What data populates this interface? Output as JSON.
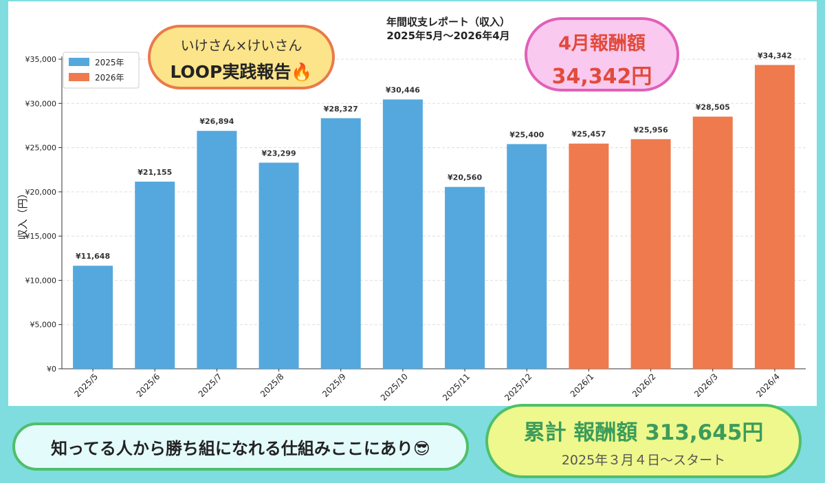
{
  "chart_data": {
    "type": "bar",
    "title": "年間収支レポート（収入）",
    "subtitle": "2025年5月〜2026年4月",
    "ylabel": "収入（円）",
    "xlabel": "",
    "ylim": [
      0,
      35000
    ],
    "yticks": [
      0,
      5000,
      10000,
      15000,
      20000,
      25000,
      30000,
      35000
    ],
    "ytick_labels": [
      "¥0",
      "¥5,000",
      "¥10,000",
      "¥15,000",
      "¥20,000",
      "¥25,000",
      "¥30,000",
      "¥35,000"
    ],
    "grid": true,
    "legend_position": "top-left",
    "categories": [
      "2025/5",
      "2025/6",
      "2025/7",
      "2025/8",
      "2025/9",
      "2025/10",
      "2025/11",
      "2025/12",
      "2026/1",
      "2026/2",
      "2026/3",
      "2026/4"
    ],
    "series": [
      {
        "name": "2025年",
        "color": "#55a8dd",
        "values": [
          11648,
          21155,
          26894,
          23299,
          28327,
          30446,
          20560,
          25400,
          null,
          null,
          null,
          null
        ]
      },
      {
        "name": "2026年",
        "color": "#ee7a4e",
        "values": [
          null,
          null,
          null,
          null,
          null,
          null,
          null,
          null,
          25457,
          25956,
          28505,
          34342
        ]
      }
    ],
    "value_labels": [
      "¥11,648",
      "¥21,155",
      "¥26,894",
      "¥23,299",
      "¥28,327",
      "¥30,446",
      "¥20,560",
      "¥25,400",
      "¥25,457",
      "¥25,956",
      "¥28,505",
      "¥34,342"
    ]
  },
  "badges": {
    "loop": {
      "line1": "いけさん×けいさん",
      "line2": "LOOP実践報告🔥"
    },
    "month": {
      "line1": "4月報酬額",
      "line2": "34,342円"
    },
    "tagline": "知ってる人から勝ち組になれる仕組みここにあり😎",
    "total": {
      "line1": "累計 報酬額 313,645円",
      "line2": "2025年３月４日〜スタート"
    }
  }
}
